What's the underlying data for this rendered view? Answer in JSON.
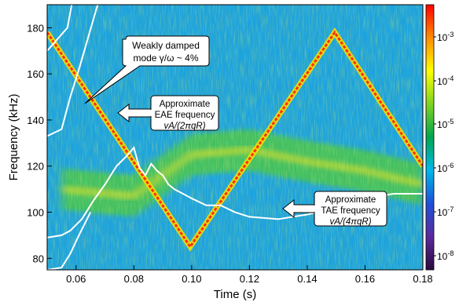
{
  "chart_data": {
    "type": "heatmap",
    "title": "",
    "xlabel": "Time (s)",
    "ylabel": "Frequency (kHz)",
    "xlim": [
      0.05,
      0.18
    ],
    "ylim": [
      75,
      190
    ],
    "xticks": [
      0.06,
      0.08,
      0.1,
      0.12,
      0.14,
      0.16,
      0.18
    ],
    "xtick_labels": [
      "0.06",
      "0.08",
      "0.10",
      "0.12",
      "0.14",
      "0.16",
      "0.18"
    ],
    "yticks": [
      80,
      100,
      120,
      140,
      160,
      180
    ],
    "ytick_labels": [
      "80",
      "100",
      "120",
      "140",
      "160",
      "180"
    ],
    "colorbar": {
      "scale": "log",
      "range": [
        1e-08,
        0.001
      ],
      "tick_base": "10",
      "tick_exponents": [
        "-3",
        "-4",
        "-5",
        "-6",
        "-7",
        "-8"
      ],
      "colors": [
        "#ff0000",
        "#ff8c00",
        "#ffff00",
        "#7ed321",
        "#00a651",
        "#00b7eb",
        "#1f4fd8",
        "#5b2a9e",
        "#2b0a3d"
      ]
    },
    "background_color": "#1aa3e0",
    "mode_line": {
      "name": "Weakly damped mode",
      "color": "#ff3010",
      "x": [
        0.05,
        0.0995,
        0.1495,
        0.18
      ],
      "y": [
        178,
        85,
        178,
        120
      ]
    },
    "broadband_band": {
      "color": "#e8e020",
      "x": [
        0.055,
        0.08,
        0.1,
        0.12,
        0.14,
        0.16,
        0.18
      ],
      "y": [
        110,
        107,
        125,
        127,
        122,
        118,
        112
      ]
    },
    "eae_curve": {
      "color": "#ffffff",
      "x": [
        0.05,
        0.057,
        0.06,
        0.063,
        0.066,
        0.07,
        0.074
      ],
      "y": [
        170,
        180,
        200,
        200,
        200,
        200,
        200
      ]
    },
    "eae_curve_lower": {
      "color": "#ffffff",
      "x": [
        0.05,
        0.055,
        0.058,
        0.061,
        0.064,
        0.067,
        0.07,
        0.073
      ],
      "y": [
        133,
        136,
        150,
        162,
        175,
        188,
        200,
        200
      ]
    },
    "tae_curve": {
      "color": "#ffffff",
      "x": [
        0.05,
        0.055,
        0.058,
        0.062,
        0.066,
        0.07,
        0.074,
        0.078,
        0.08,
        0.082,
        0.084,
        0.086,
        0.088,
        0.09,
        0.092,
        0.094,
        0.097,
        0.1,
        0.105,
        0.11,
        0.115,
        0.12,
        0.13,
        0.14,
        0.15,
        0.16,
        0.17,
        0.18
      ],
      "y": [
        89,
        90,
        92,
        97,
        105,
        112,
        120,
        125,
        128,
        119,
        116,
        121,
        118,
        116,
        112,
        110,
        108,
        106,
        103,
        103,
        100,
        98,
        97,
        99,
        102,
        106,
        108,
        108
      ]
    },
    "tae_curve_low": {
      "color": "#ffffff",
      "x": [
        0.05,
        0.055,
        0.058,
        0.061,
        0.065
      ],
      "y": [
        75,
        76,
        82,
        90,
        100
      ]
    },
    "annotations": [
      {
        "lines": [
          "Weakly damped",
          "mode γ/ω ~ 4%"
        ],
        "kind": "callout"
      },
      {
        "lines": [
          "Approximate",
          "EAE frequency",
          "vA/(2πqR)"
        ],
        "kind": "arrow"
      },
      {
        "lines": [
          "Approximate",
          "TAE frequency",
          "vA/(4πqR)"
        ],
        "kind": "arrow"
      }
    ]
  }
}
